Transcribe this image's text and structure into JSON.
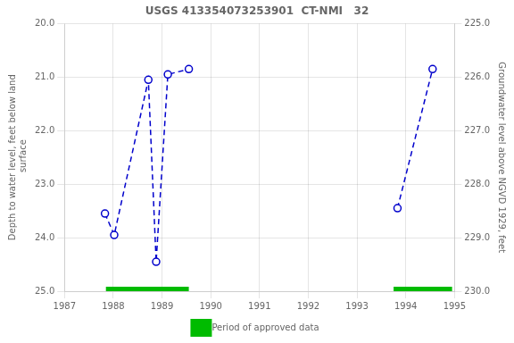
{
  "chart_data": {
    "type": "line",
    "title": "USGS 413354073253901  CT-NMI   32",
    "ylabel": "Depth to water level, feet below land\n surface",
    "y2label": "Groundwater level above NGVD 1929, feet",
    "xlim": [
      1987,
      1995
    ],
    "xticks": [
      1987,
      1988,
      1989,
      1990,
      1991,
      1992,
      1993,
      1994,
      1995
    ],
    "ylim": [
      25.0,
      20.0
    ],
    "yticks": [
      {
        "value": 20.0,
        "label": "20.0"
      },
      {
        "value": 21.0,
        "label": "21.0"
      },
      {
        "value": 22.0,
        "label": "22.0"
      },
      {
        "value": 23.0,
        "label": "23.0"
      },
      {
        "value": 24.0,
        "label": "24.0"
      },
      {
        "value": 25.0,
        "label": "25.0"
      }
    ],
    "y2lim": [
      230.0,
      225.0
    ],
    "y2ticks": [
      {
        "value": 230.0,
        "label": "230.0"
      },
      {
        "value": 229.0,
        "label": "229.0"
      },
      {
        "value": 228.0,
        "label": "228.0"
      },
      {
        "value": 227.0,
        "label": "227.0"
      },
      {
        "value": 226.0,
        "label": "226.0"
      },
      {
        "value": 225.0,
        "label": "225.0"
      }
    ],
    "grid": true,
    "legend": "bottom",
    "series": [
      {
        "type": "line",
        "color": "#0000CC",
        "line_style": "dashed",
        "marker": "circle",
        "x": [
          1987.83,
          1988.02,
          1988.72,
          1988.88,
          1989.12,
          1989.55
        ],
        "values": [
          23.55,
          23.95,
          21.05,
          24.45,
          20.95,
          20.85
        ]
      },
      {
        "type": "line",
        "color": "#0000CC",
        "line_style": "dashed",
        "marker": "circle",
        "x": [
          1993.83,
          1994.55
        ],
        "values": [
          23.45,
          20.85
        ]
      },
      {
        "type": "band",
        "name": "Period of approved data",
        "color": "#00BB00",
        "ranges": [
          [
            1987.85,
            1989.55
          ],
          [
            1993.75,
            1994.95
          ]
        ]
      }
    ]
  }
}
